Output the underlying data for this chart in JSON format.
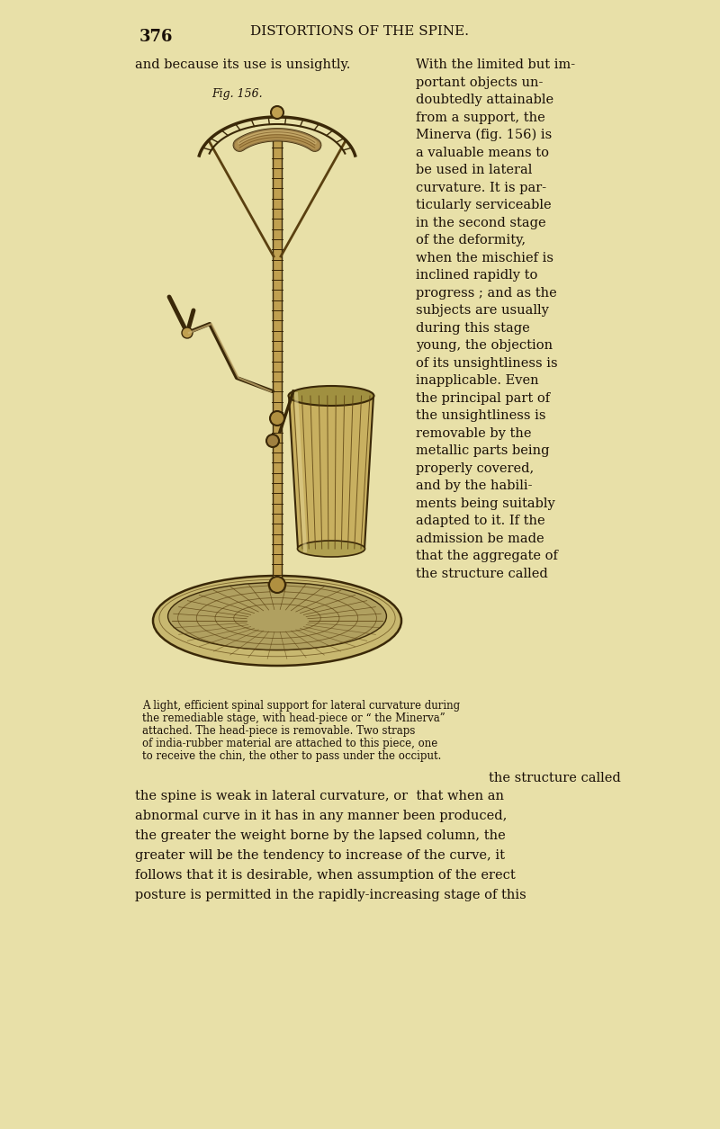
{
  "bg_color": "#e8e0a8",
  "page_number": "376",
  "header": "DISTORTIONS OF THE SPINE.",
  "fig_label": "Fig. 156.",
  "text_color": "#1a1008",
  "header_font_size": 11,
  "page_num_font_size": 13,
  "body_font_size": 10.5,
  "caption_font_size": 8.5,
  "paragraph_right_col": [
    "With the limited but im-",
    "portant objects un-",
    "doubtedly attainable",
    "from a support, the",
    "Minerva (fig. 156) is",
    "a valuable means to",
    "be used in lateral",
    "curvature. It is par-",
    "ticularly serviceable",
    "in the second stage",
    "of the deformity,",
    "when the mischief is",
    "inclined rapidly to",
    "progress ; and as the",
    "subjects are usually",
    "during this stage",
    "young, the objection",
    "of its unsightliness is",
    "inapplicable. Even",
    "the principal part of",
    "the unsightliness is",
    "removable by the",
    "metallic parts being",
    "properly covered,",
    "and by the habili-",
    "ments being suitably",
    "adapted to it. If the",
    "admission be made",
    "that the aggregate of",
    "the structure called"
  ],
  "caption_lines": [
    "A light, efficient spinal support for lateral curvature during",
    "the remediable stage, with head-piece or “ the Minerva”",
    "attached. The head-piece is removable. Two straps",
    "of india-rubber material are attached to this piece, one",
    "to receive the chin, the other to pass under the occiput."
  ],
  "bottom_paragraph": [
    "the spine is weak in lateral curvature, or  that when an",
    "abnormal curve in it has in any manner been produced,",
    "the greater the weight borne by the lapsed column, the",
    "greater will be the tendency to increase of the curve, it",
    "follows that it is desirable, when assumption of the erect",
    "posture is permitted in the rapidly-increasing stage of this"
  ]
}
